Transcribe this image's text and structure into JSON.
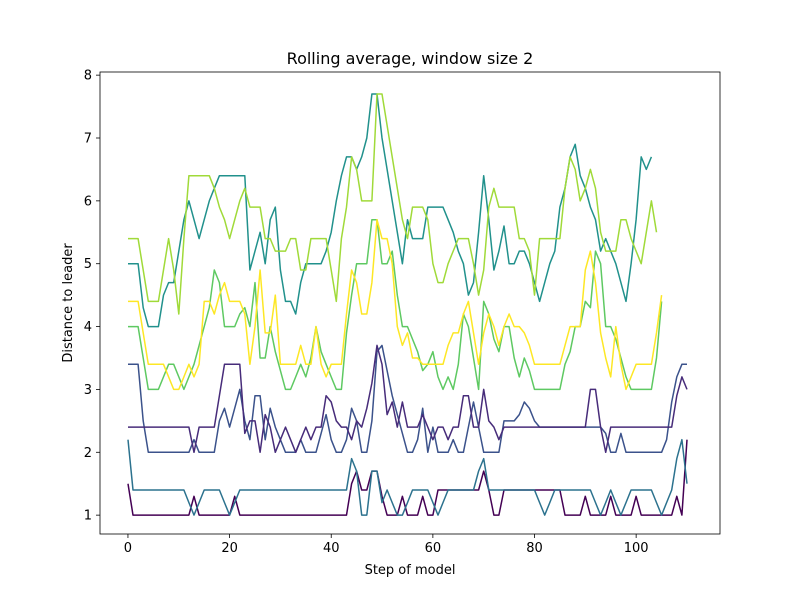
{
  "chart_data": {
    "type": "line",
    "title": "Rolling average, window size 2",
    "xlabel": "Step of model",
    "ylabel": "Distance to leader",
    "xlim": [
      -5.5,
      116.5
    ],
    "ylim": [
      0.7,
      8.05
    ],
    "xticks": [
      0,
      20,
      40,
      60,
      80,
      100
    ],
    "yticks": [
      1,
      2,
      3,
      4,
      5,
      6,
      7,
      8
    ],
    "grid": false,
    "legend": "none",
    "series": [
      {
        "color": "#440154",
        "values": [
          1.5,
          1.0,
          1.0,
          1.0,
          1.0,
          1.0,
          1.0,
          1.0,
          1.0,
          1.0,
          1.0,
          1.0,
          1.0,
          1.3,
          1.0,
          1.0,
          1.0,
          1.0,
          1.0,
          1.0,
          1.0,
          1.3,
          1.0,
          1.0,
          1.0,
          1.0,
          1.0,
          1.0,
          1.0,
          1.0,
          1.0,
          1.0,
          1.0,
          1.0,
          1.0,
          1.0,
          1.0,
          1.0,
          1.0,
          1.0,
          1.0,
          1.0,
          1.0,
          1.0,
          1.5,
          1.7,
          1.4,
          1.4,
          1.7,
          1.7,
          1.3,
          1.0,
          1.0,
          1.0,
          1.3,
          1.0,
          1.0,
          1.0,
          1.3,
          1.0,
          1.0,
          1.4,
          1.4,
          1.4,
          1.4,
          1.4,
          1.4,
          1.4,
          1.4,
          1.4,
          1.7,
          1.4,
          1.0,
          1.0,
          1.4,
          1.4,
          1.4,
          1.4,
          1.4,
          1.4,
          1.4,
          1.4,
          1.4,
          1.4,
          1.4,
          1.4,
          1.0,
          1.0,
          1.0,
          1.0,
          1.3,
          1.0,
          1.0,
          1.0,
          1.0,
          1.3,
          1.0,
          1.0,
          1.0,
          1.0,
          1.3,
          1.0,
          1.0,
          1.0,
          1.0,
          1.0,
          1.0,
          1.0,
          1.3,
          1.0,
          2.2
        ]
      },
      {
        "color": "#3b528b",
        "values": [
          3.4,
          3.4,
          3.4,
          2.5,
          2.0,
          2.0,
          2.0,
          2.0,
          2.0,
          2.0,
          2.0,
          2.0,
          2.0,
          2.2,
          2.0,
          2.0,
          2.0,
          2.0,
          2.5,
          2.7,
          2.4,
          2.7,
          3.0,
          2.5,
          2.2,
          2.9,
          2.9,
          2.2,
          2.7,
          2.4,
          2.2,
          2.0,
          2.0,
          2.0,
          2.2,
          2.0,
          2.0,
          2.0,
          2.3,
          2.6,
          2.2,
          2.0,
          2.0,
          2.2,
          2.7,
          2.5,
          2.0,
          2.0,
          2.5,
          3.6,
          3.7,
          3.3,
          2.9,
          2.6,
          2.3,
          2.0,
          2.0,
          2.2,
          2.7,
          2.0,
          2.4,
          2.0,
          2.0,
          2.0,
          2.2,
          2.0,
          2.0,
          2.4,
          2.8,
          2.4,
          2.0,
          2.0,
          2.0,
          2.0,
          2.5,
          2.5,
          2.5,
          2.6,
          2.8,
          2.7,
          2.5,
          2.4,
          2.4,
          2.4,
          2.4,
          2.4,
          2.4,
          2.4,
          2.4,
          2.4,
          2.4,
          2.4,
          2.4,
          2.4,
          2.3,
          2.0,
          2.0,
          2.3,
          2.0,
          2.0,
          2.0,
          2.0,
          2.0,
          2.0,
          2.0,
          2.0,
          2.2,
          2.8,
          3.2,
          3.4,
          3.4
        ]
      },
      {
        "color": "#472c7a",
        "values": [
          2.4,
          2.4,
          2.4,
          2.4,
          2.4,
          2.4,
          2.4,
          2.4,
          2.4,
          2.4,
          2.4,
          2.4,
          2.4,
          2.0,
          2.4,
          2.4,
          2.4,
          2.4,
          2.9,
          3.4,
          3.4,
          3.4,
          3.4,
          2.3,
          2.5,
          2.5,
          2.0,
          2.6,
          2.4,
          2.0,
          2.2,
          2.4,
          2.2,
          2.0,
          2.2,
          2.4,
          2.2,
          2.4,
          2.4,
          2.9,
          2.8,
          2.5,
          2.4,
          2.4,
          2.2,
          2.5,
          2.4,
          2.7,
          3.1,
          3.7,
          3.4,
          2.6,
          2.8,
          2.4,
          2.8,
          2.4,
          2.4,
          2.4,
          2.6,
          2.4,
          2.2,
          2.4,
          2.4,
          2.2,
          2.4,
          2.4,
          2.9,
          2.9,
          2.4,
          2.4,
          3.0,
          2.5,
          2.4,
          2.2,
          2.4,
          2.4,
          2.4,
          2.4,
          2.4,
          2.4,
          2.4,
          2.4,
          2.4,
          2.4,
          2.4,
          2.4,
          2.4,
          2.4,
          2.4,
          2.4,
          2.4,
          3.0,
          3.0,
          2.4,
          2.0,
          2.4,
          2.4,
          2.4,
          2.4,
          2.4,
          2.4,
          2.4,
          2.4,
          2.4,
          2.4,
          2.4,
          2.4,
          2.4,
          2.9,
          3.2,
          3.0
        ]
      },
      {
        "color": "#2c728e",
        "values": [
          2.2,
          1.4,
          1.4,
          1.4,
          1.4,
          1.4,
          1.4,
          1.4,
          1.4,
          1.4,
          1.4,
          1.4,
          1.2,
          1.0,
          1.2,
          1.4,
          1.4,
          1.4,
          1.4,
          1.2,
          1.0,
          1.2,
          1.4,
          1.4,
          1.4,
          1.4,
          1.4,
          1.4,
          1.4,
          1.4,
          1.4,
          1.4,
          1.4,
          1.4,
          1.4,
          1.4,
          1.4,
          1.4,
          1.4,
          1.4,
          1.4,
          1.4,
          1.4,
          1.4,
          1.9,
          1.7,
          1.0,
          1.0,
          1.7,
          1.7,
          1.2,
          1.4,
          1.2,
          1.0,
          1.0,
          1.2,
          1.4,
          1.4,
          1.4,
          1.4,
          1.2,
          1.0,
          1.2,
          1.4,
          1.4,
          1.4,
          1.4,
          1.4,
          1.4,
          1.7,
          1.9,
          1.4,
          1.4,
          1.4,
          1.4,
          1.4,
          1.4,
          1.4,
          1.4,
          1.4,
          1.4,
          1.2,
          1.0,
          1.2,
          1.4,
          1.4,
          1.4,
          1.4,
          1.4,
          1.4,
          1.4,
          1.4,
          1.2,
          1.0,
          1.2,
          1.4,
          1.2,
          1.0,
          1.2,
          1.4,
          1.4,
          1.4,
          1.4,
          1.4,
          1.2,
          1.0,
          1.2,
          1.4,
          1.9,
          2.2,
          1.5
        ]
      },
      {
        "color": "#21918c",
        "values": [
          5.0,
          5.0,
          5.0,
          4.3,
          4.0,
          4.0,
          4.0,
          4.5,
          4.7,
          4.7,
          5.2,
          5.7,
          6.0,
          5.7,
          5.4,
          5.7,
          6.0,
          6.2,
          6.4,
          6.4,
          6.4,
          6.4,
          6.4,
          6.4,
          4.9,
          5.2,
          5.5,
          5.0,
          5.7,
          5.9,
          4.9,
          4.4,
          4.4,
          4.2,
          4.7,
          5.0,
          5.0,
          5.0,
          5.0,
          5.2,
          5.5,
          6.0,
          6.4,
          6.7,
          6.7,
          6.5,
          6.7,
          7.0,
          7.7,
          7.7,
          7.0,
          6.5,
          6.0,
          5.5,
          5.0,
          5.7,
          5.4,
          5.4,
          5.4,
          5.9,
          5.9,
          5.9,
          5.9,
          5.7,
          5.5,
          5.2,
          5.0,
          4.5,
          4.7,
          5.5,
          6.4,
          5.7,
          4.9,
          5.2,
          5.6,
          5.0,
          5.0,
          5.2,
          5.2,
          5.0,
          4.7,
          4.4,
          4.7,
          5.0,
          5.2,
          5.9,
          6.2,
          6.7,
          6.9,
          6.4,
          6.2,
          5.9,
          5.7,
          5.2,
          5.4,
          5.2,
          5.0,
          4.7,
          4.4,
          5.0,
          5.7,
          6.7,
          6.5,
          6.7
        ]
      },
      {
        "color": "#5ec962",
        "values": [
          4.0,
          4.0,
          4.0,
          3.5,
          3.0,
          3.0,
          3.0,
          3.2,
          3.4,
          3.4,
          3.2,
          3.0,
          3.2,
          3.4,
          3.7,
          4.0,
          4.3,
          4.9,
          4.7,
          4.0,
          4.0,
          4.0,
          4.2,
          4.3,
          4.0,
          4.7,
          3.5,
          3.5,
          4.0,
          3.6,
          3.3,
          3.0,
          3.0,
          3.2,
          3.4,
          3.2,
          3.5,
          4.0,
          3.6,
          3.4,
          3.2,
          3.0,
          3.0,
          3.9,
          4.5,
          5.0,
          5.0,
          5.0,
          5.7,
          5.7,
          5.0,
          5.0,
          5.2,
          4.5,
          4.0,
          4.0,
          3.8,
          3.6,
          3.3,
          3.4,
          3.6,
          3.2,
          3.0,
          3.2,
          3.0,
          3.4,
          4.2,
          4.0,
          3.5,
          3.0,
          4.4,
          4.2,
          3.8,
          3.6,
          4.0,
          4.0,
          3.5,
          3.2,
          3.5,
          3.3,
          3.0,
          3.0,
          3.0,
          3.0,
          3.0,
          3.0,
          3.4,
          3.6,
          4.0,
          4.0,
          4.4,
          4.3,
          5.2,
          5.0,
          4.0,
          4.0,
          3.8,
          3.5,
          3.2,
          3.0,
          3.0,
          3.0,
          3.0,
          3.0,
          3.5,
          4.4
        ]
      },
      {
        "color": "#a0da39",
        "values": [
          5.4,
          5.4,
          5.4,
          4.9,
          4.4,
          4.4,
          4.4,
          4.9,
          5.4,
          4.9,
          4.2,
          5.4,
          6.4,
          6.4,
          6.4,
          6.4,
          6.4,
          6.2,
          5.9,
          5.7,
          5.4,
          5.7,
          6.0,
          6.2,
          5.9,
          5.9,
          5.9,
          5.4,
          5.4,
          5.2,
          5.2,
          5.2,
          5.4,
          5.4,
          4.9,
          4.9,
          5.4,
          5.4,
          5.4,
          5.4,
          4.9,
          4.4,
          5.4,
          5.9,
          6.7,
          6.5,
          6.0,
          6.0,
          6.0,
          7.7,
          7.7,
          7.2,
          6.7,
          6.2,
          5.7,
          5.4,
          5.9,
          5.9,
          5.9,
          5.7,
          5.0,
          4.7,
          4.7,
          5.0,
          5.2,
          5.4,
          5.4,
          5.4,
          5.0,
          4.5,
          4.9,
          5.9,
          6.2,
          5.9,
          5.9,
          5.9,
          5.9,
          5.4,
          5.4,
          5.2,
          4.5,
          5.4,
          5.4,
          5.4,
          5.4,
          5.4,
          6.2,
          6.7,
          6.5,
          6.0,
          6.2,
          6.5,
          6.2,
          5.5,
          5.2,
          5.2,
          5.2,
          5.7,
          5.7,
          5.4,
          5.2,
          5.0,
          5.5,
          6.0,
          5.5
        ]
      },
      {
        "color": "#fde725",
        "values": [
          4.4,
          4.4,
          4.4,
          3.9,
          3.4,
          3.4,
          3.4,
          3.4,
          3.2,
          3.0,
          3.0,
          3.2,
          3.4,
          3.2,
          3.4,
          4.4,
          4.4,
          4.2,
          4.5,
          4.7,
          4.4,
          4.4,
          4.4,
          4.2,
          3.4,
          4.0,
          4.9,
          3.9,
          3.9,
          4.5,
          3.4,
          3.4,
          3.4,
          3.4,
          3.7,
          3.4,
          3.4,
          4.0,
          3.4,
          3.2,
          3.4,
          3.4,
          3.4,
          4.2,
          4.9,
          4.7,
          4.2,
          4.2,
          4.7,
          5.7,
          5.4,
          5.4,
          5.0,
          4.0,
          3.7,
          3.9,
          3.5,
          3.5,
          3.4,
          3.4,
          3.4,
          3.4,
          3.4,
          3.7,
          3.9,
          3.9,
          4.2,
          4.4,
          3.9,
          3.4,
          3.9,
          4.2,
          4.0,
          3.7,
          4.0,
          4.2,
          4.0,
          4.0,
          3.9,
          3.7,
          3.4,
          3.4,
          3.4,
          3.4,
          3.4,
          3.4,
          3.7,
          4.0,
          4.0,
          4.0,
          4.9,
          5.2,
          4.7,
          3.9,
          3.5,
          3.2,
          4.0,
          3.4,
          3.0,
          3.2,
          3.4,
          3.4,
          3.4,
          3.4,
          3.9,
          4.5
        ]
      }
    ]
  }
}
